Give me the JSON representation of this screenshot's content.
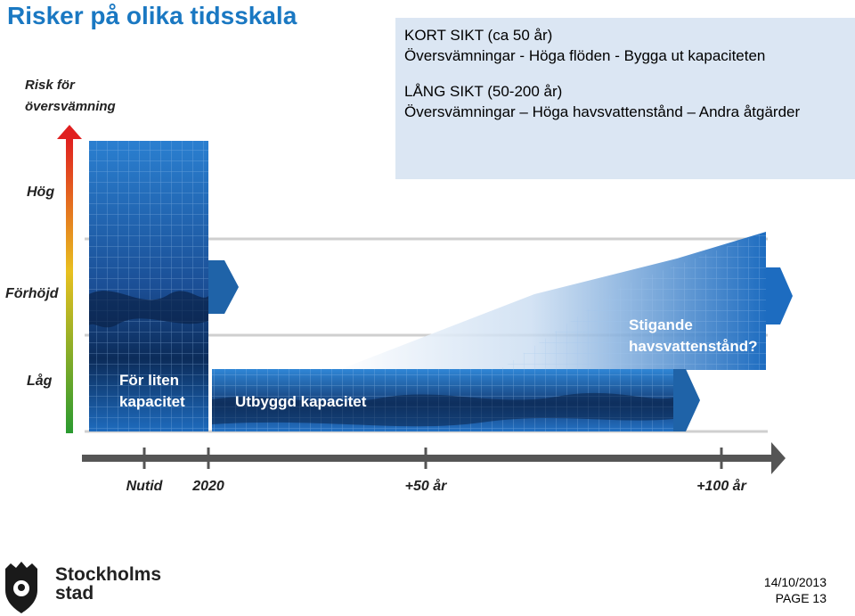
{
  "title": "Risker på olika tidsskala",
  "infobox": {
    "short_heading": "KORT SIKT (ca 50 år)",
    "short_text": "Översvämningar - Höga flöden  - Bygga ut kapaciteten",
    "long_heading": "LÅNG SIKT (50-200 år)",
    "long_text": "Översvämningar – Höga havsvattenstånd – Andra åtgärder"
  },
  "diagram": {
    "y_axis_title_line1": "Risk för",
    "y_axis_title_line2": "översvämning",
    "level_high": "Hög",
    "level_elevated": "Förhöjd",
    "level_low": "Låg",
    "timeline_labels": [
      "Nutid",
      "2020",
      "+50 år",
      "+100 år"
    ],
    "label_small_capacity_line1": "För liten",
    "label_small_capacity_line2": "kapacitet",
    "label_expanded_capacity": "Utbyggd kapacitet",
    "label_rising_line1": "Stigande",
    "label_rising_line2": "havsvattenstånd?"
  },
  "logo": {
    "line1": "Stockholms",
    "line2": "stad"
  },
  "footer": {
    "date": "14/10/2013",
    "page": "PAGE 13"
  },
  "colors": {
    "title": "#1a78c2",
    "infobox_bg": "#dbe6f3",
    "band_blue": "#1f63a8",
    "timeline": "#555555"
  }
}
